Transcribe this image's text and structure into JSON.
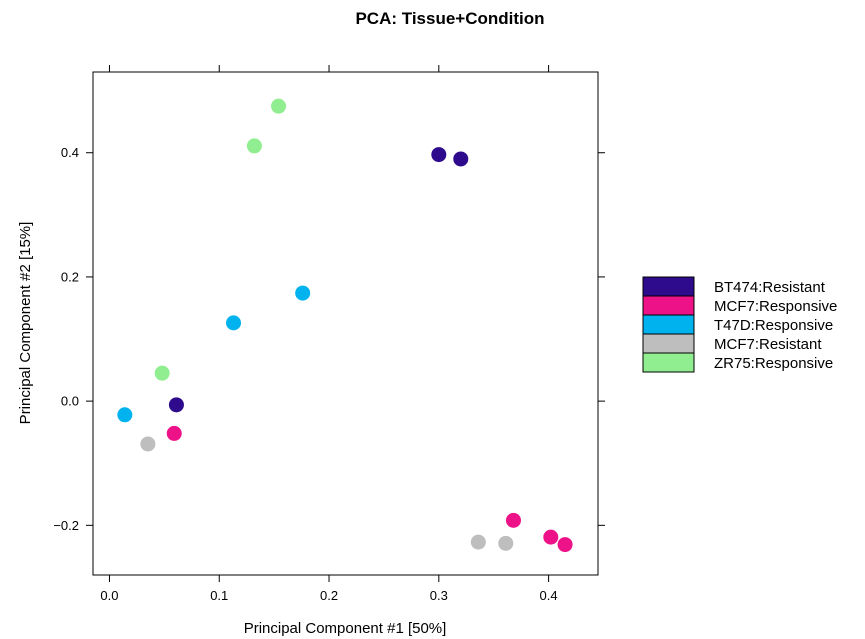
{
  "chart_data": {
    "type": "scatter",
    "title": "PCA: Tissue+Condition",
    "xlabel": "Principal Component #1 [50%]",
    "ylabel": "Principal Component #2 [15%]",
    "xlim": [
      -0.015,
      0.445
    ],
    "ylim": [
      -0.28,
      0.53
    ],
    "xticks": [
      0.0,
      0.1,
      0.2,
      0.3,
      0.4
    ],
    "xtick_labels": [
      "0.0",
      "0.1",
      "0.2",
      "0.3",
      "0.4"
    ],
    "yticks": [
      -0.2,
      0.0,
      0.2,
      0.4
    ],
    "ytick_labels": [
      "−0.2",
      "0.0",
      "0.2",
      "0.4"
    ],
    "grid": false,
    "legend_position": "right",
    "series": [
      {
        "name": "BT474:Resistant",
        "color": "#2e0a8c",
        "points": [
          [
            0.3,
            0.397
          ],
          [
            0.32,
            0.39
          ],
          [
            0.061,
            -0.006
          ]
        ]
      },
      {
        "name": "MCF7:Responsive",
        "color": "#ee1289",
        "points": [
          [
            0.059,
            -0.052
          ],
          [
            0.368,
            -0.192
          ],
          [
            0.402,
            -0.219
          ],
          [
            0.415,
            -0.231
          ]
        ]
      },
      {
        "name": "T47D:Responsive",
        "color": "#00b2ee",
        "points": [
          [
            0.176,
            0.174
          ],
          [
            0.113,
            0.126
          ],
          [
            0.014,
            -0.022
          ]
        ]
      },
      {
        "name": "MCF7:Resistant",
        "color": "#bebebe",
        "points": [
          [
            0.035,
            -0.069
          ],
          [
            0.336,
            -0.227
          ],
          [
            0.361,
            -0.229
          ]
        ]
      },
      {
        "name": "ZR75:Responsive",
        "color": "#90ee90",
        "points": [
          [
            0.154,
            0.475
          ],
          [
            0.132,
            0.411
          ],
          [
            0.048,
            0.045
          ]
        ]
      }
    ]
  }
}
